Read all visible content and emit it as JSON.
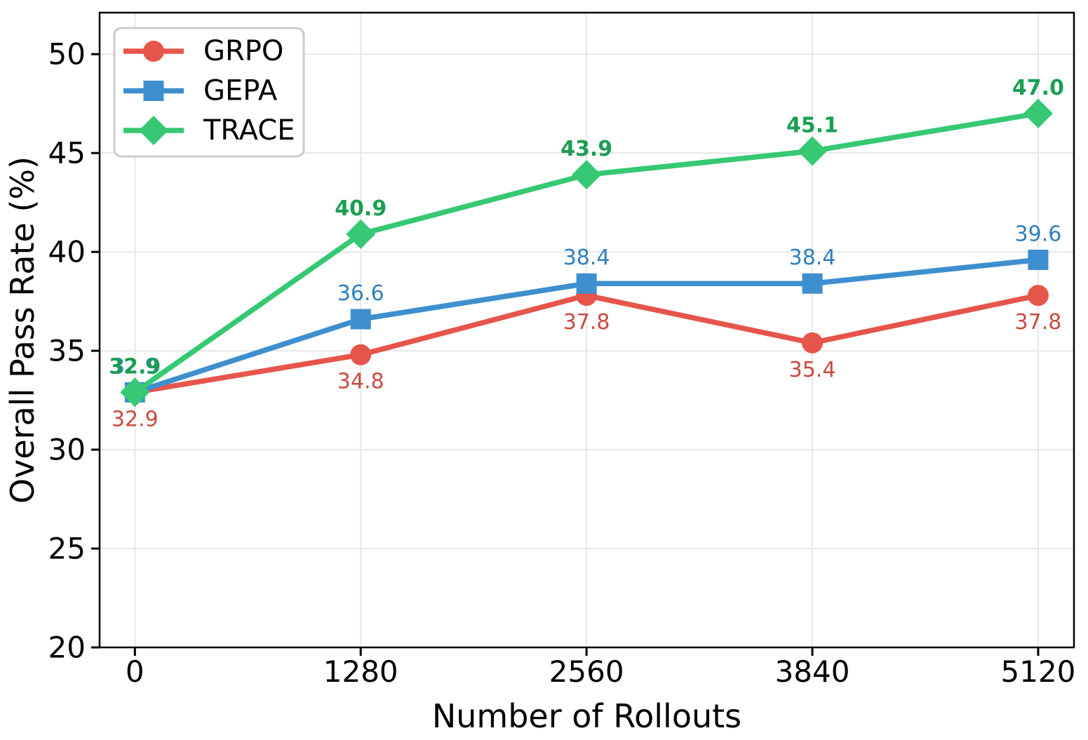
{
  "figure": {
    "background": "#ffffff",
    "axis_color": "#000000",
    "grid_color": "#e7e7e7",
    "tick_label_color": "#000000",
    "legend_border_color": "#cbcbcb",
    "legend_background": "#ffffff"
  },
  "chart_data": {
    "type": "line",
    "title": "",
    "xlabel": "Number of Rollouts",
    "ylabel": "Overall Pass Rate (%)",
    "x": [
      0,
      1280,
      2560,
      3840,
      5120
    ],
    "xticks": [
      "0",
      "1280",
      "2560",
      "3840",
      "5120"
    ],
    "xtick_values": [
      0,
      1280,
      2560,
      3840,
      5120
    ],
    "yticks": [
      "20",
      "25",
      "30",
      "35",
      "40",
      "45",
      "50"
    ],
    "ytick_values": [
      20,
      25,
      30,
      35,
      40,
      45,
      50
    ],
    "xlim": [
      -200,
      5323
    ],
    "ylim": [
      20,
      52.1
    ],
    "grid": true,
    "legend_position": "upper-left",
    "series": [
      {
        "name": "GRPO",
        "marker": "circle",
        "color": "#e6554b",
        "label_color": "#c94a40",
        "values": [
          32.9,
          34.8,
          37.8,
          35.4,
          37.8
        ],
        "labels": [
          "32.9",
          "34.8",
          "37.8",
          "35.4",
          "37.8"
        ],
        "label_side": "below",
        "label_bold": false
      },
      {
        "name": "GEPA",
        "marker": "square",
        "color": "#3e8fcf",
        "label_color": "#2f7fbf",
        "values": [
          32.9,
          36.6,
          38.4,
          38.4,
          39.6
        ],
        "labels": [
          "32.9",
          "36.6",
          "38.4",
          "38.4",
          "39.6"
        ],
        "label_side": "above",
        "label_bold": false
      },
      {
        "name": "TRACE",
        "marker": "diamond",
        "color": "#36c873",
        "label_color": "#1b9e53",
        "values": [
          32.9,
          40.9,
          43.9,
          45.1,
          47.0
        ],
        "labels": [
          "32.9",
          "40.9",
          "43.9",
          "45.1",
          "47.0"
        ],
        "label_side": "above",
        "label_bold": true
      }
    ]
  }
}
